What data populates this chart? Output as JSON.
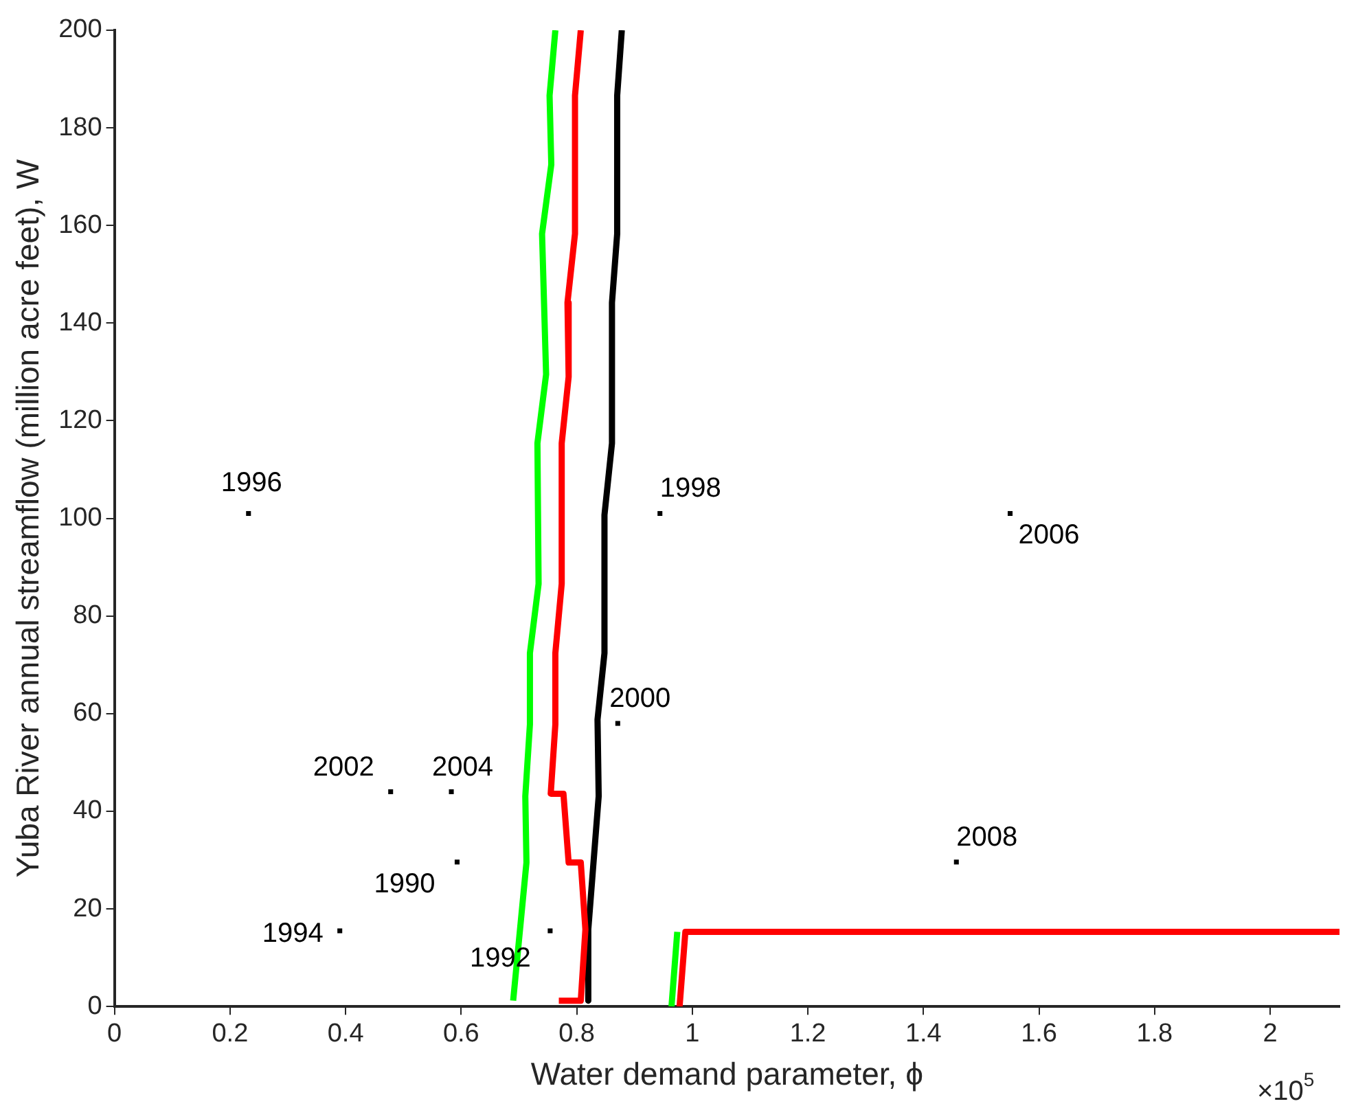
{
  "chart_data": {
    "type": "line",
    "xlabel": "Water demand parameter, ϕ",
    "ylabel": "Yuba River annual streamflow (million acre feet), W",
    "xlim": [
      0,
      2.12
    ],
    "ylim": [
      0,
      200
    ],
    "xticks": [
      0,
      0.2,
      0.4,
      0.6,
      0.8,
      1,
      1.2,
      1.4,
      1.6,
      1.8,
      2
    ],
    "yticks": [
      0,
      20,
      40,
      60,
      80,
      100,
      120,
      140,
      160,
      180,
      200
    ],
    "series": [
      {
        "type": "line",
        "color": "#00ff00",
        "x": [
          0.763,
          0.753,
          0.756,
          0.74,
          0.747,
          0.732,
          0.734,
          0.719,
          0.719,
          0.711,
          0.713,
          0.69,
          null,
          0.964,
          0.974
        ],
        "values": [
          200,
          186.6,
          172.5,
          158.3,
          129.5,
          115.4,
          86.6,
          72.4,
          57.8,
          43.1,
          29.5,
          1.2,
          null,
          0,
          15.3
        ]
      },
      {
        "type": "line",
        "color": "#ff0000",
        "x": [
          0.807,
          0.797,
          0.797,
          0.784,
          0.786,
          0.774,
          0.774,
          0.763,
          0.763,
          0.755,
          0.777,
          0.786,
          0.807,
          0.815,
          0.807,
          0.769,
          null,
          0.978,
          0.988,
          2.12
        ],
        "values": [
          200,
          186.6,
          158.3,
          144.2,
          129,
          115.4,
          86.6,
          72.4,
          57.8,
          43.6,
          43.6,
          29.5,
          29.5,
          15.8,
          1.2,
          1.2,
          null,
          0,
          15.3,
          15.3
        ]
      },
      {
        "type": "line",
        "color": "#000000",
        "x": [
          0.878,
          0.87,
          0.87,
          0.861,
          0.861,
          0.848,
          0.848,
          0.836,
          0.838,
          0.82,
          0.82
        ],
        "values": [
          200,
          186.6,
          158.3,
          144.2,
          115.4,
          100.7,
          72.4,
          58.8,
          43.1,
          15.8,
          1.2
        ]
      },
      {
        "type": "scatter",
        "color": "#000000",
        "marker": "square",
        "x": [
          0.232,
          0.944,
          1.55,
          0.871,
          0.478,
          0.583,
          0.593,
          1.457,
          0.39,
          0.754
        ],
        "values": [
          101,
          101,
          101,
          58,
          44,
          44,
          29.6,
          29.6,
          15.5,
          15.5
        ]
      }
    ],
    "annotations": [
      {
        "text": "1996",
        "x": 0.232,
        "y": 101
      },
      {
        "text": "1998",
        "x": 0.944,
        "y": 101
      },
      {
        "text": "2006",
        "x": 1.55,
        "y": 101
      },
      {
        "text": "2000",
        "x": 0.871,
        "y": 58
      },
      {
        "text": "2002",
        "x": 0.478,
        "y": 44
      },
      {
        "text": "2004",
        "x": 0.583,
        "y": 44
      },
      {
        "text": "1990",
        "x": 0.593,
        "y": 29.6
      },
      {
        "text": "2008",
        "x": 1.457,
        "y": 29.6
      },
      {
        "text": "1994",
        "x": 0.39,
        "y": 15.5
      },
      {
        "text": "1992",
        "x": 0.754,
        "y": 15.5
      },
      "×10$^{5}$"
    ]
  }
}
